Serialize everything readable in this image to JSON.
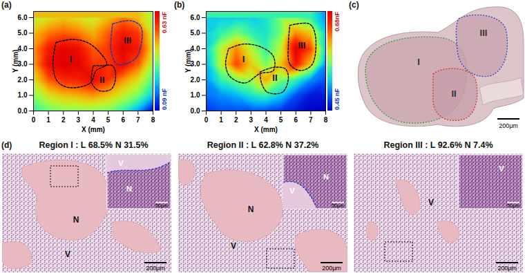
{
  "chart_data": [
    {
      "type": "heatmap",
      "title": "(a)",
      "xlabel": "X (mm)",
      "ylabel": "Y (mm)",
      "xlim": [
        0,
        8
      ],
      "ylim": [
        0,
        6.4
      ],
      "xticks": [
        0,
        1,
        2,
        3,
        4,
        5,
        6,
        7,
        8
      ],
      "yticks": [
        0,
        1,
        2,
        3,
        4,
        5,
        6
      ],
      "x": [
        0,
        1,
        2,
        3,
        4,
        5,
        6,
        7,
        8
      ],
      "y": [
        6,
        5,
        4,
        3,
        2,
        1,
        0
      ],
      "z": [
        [
          0.4,
          0.42,
          0.44,
          0.42,
          0.4,
          0.45,
          0.5,
          0.45,
          0.38
        ],
        [
          0.45,
          0.5,
          0.52,
          0.5,
          0.46,
          0.52,
          0.58,
          0.55,
          0.4
        ],
        [
          0.48,
          0.58,
          0.62,
          0.6,
          0.52,
          0.55,
          0.62,
          0.58,
          0.42
        ],
        [
          0.47,
          0.6,
          0.63,
          0.62,
          0.55,
          0.55,
          0.6,
          0.52,
          0.38
        ],
        [
          0.42,
          0.52,
          0.56,
          0.57,
          0.6,
          0.55,
          0.48,
          0.42,
          0.32
        ],
        [
          0.36,
          0.42,
          0.45,
          0.46,
          0.48,
          0.45,
          0.4,
          0.35,
          0.25
        ],
        [
          0.3,
          0.34,
          0.36,
          0.36,
          0.36,
          0.35,
          0.3,
          0.22,
          0.09
        ]
      ],
      "colorbar": {
        "range": [
          0.09,
          0.63
        ],
        "ticks": [
          {
            "value": 0.63,
            "label": "0.63 nF"
          },
          {
            "value": 0.09,
            "label": "0.09 nF"
          }
        ]
      },
      "regions": [
        {
          "label": "I",
          "color": "#000000",
          "label_position": [
            2.5,
            3.3
          ],
          "outline": [
            [
              1.5,
              4.4
            ],
            [
              2.6,
              4.6
            ],
            [
              3.6,
              4.4
            ],
            [
              4.4,
              3.8
            ],
            [
              4.9,
              3.0
            ],
            [
              4.2,
              2.6
            ],
            [
              3.8,
              1.8
            ],
            [
              2.4,
              1.5
            ],
            [
              1.6,
              1.9
            ],
            [
              1.3,
              3.0
            ]
          ]
        },
        {
          "label": "II",
          "color": "#000000",
          "label_position": [
            4.6,
            2.0
          ],
          "outline": [
            [
              4.0,
              2.9
            ],
            [
              4.6,
              2.9
            ],
            [
              5.3,
              2.9
            ],
            [
              5.5,
              2.2
            ],
            [
              5.2,
              1.4
            ],
            [
              4.4,
              1.3
            ],
            [
              3.9,
              1.8
            ]
          ]
        },
        {
          "label": "III",
          "color": "#2030c0",
          "label_position": [
            6.3,
            4.5
          ],
          "outline": [
            [
              5.3,
              5.6
            ],
            [
              6.5,
              5.8
            ],
            [
              7.2,
              5.4
            ],
            [
              7.0,
              3.6
            ],
            [
              6.4,
              3.1
            ],
            [
              5.6,
              3.0
            ],
            [
              5.2,
              3.8
            ],
            [
              5.2,
              4.8
            ]
          ]
        }
      ]
    },
    {
      "type": "heatmap",
      "title": "(b)",
      "xlabel": "X (mm)",
      "ylabel": "Y (mm)",
      "xlim": [
        0,
        8
      ],
      "ylim": [
        0,
        6.4
      ],
      "xticks": [
        0,
        1,
        2,
        3,
        4,
        5,
        6,
        7,
        8
      ],
      "yticks": [
        0,
        1,
        2,
        3,
        4,
        5,
        6
      ],
      "x": [
        0,
        1,
        2,
        3,
        4,
        5,
        6,
        7,
        8
      ],
      "y": [
        6,
        5,
        4,
        3,
        2,
        1,
        0
      ],
      "z": [
        [
          0.52,
          0.52,
          0.52,
          0.52,
          0.53,
          0.56,
          0.56,
          0.54,
          0.5
        ],
        [
          0.52,
          0.54,
          0.56,
          0.54,
          0.53,
          0.56,
          0.62,
          0.6,
          0.52
        ],
        [
          0.52,
          0.58,
          0.62,
          0.58,
          0.54,
          0.58,
          0.68,
          0.64,
          0.52
        ],
        [
          0.51,
          0.58,
          0.64,
          0.6,
          0.56,
          0.6,
          0.66,
          0.6,
          0.5
        ],
        [
          0.5,
          0.54,
          0.56,
          0.57,
          0.61,
          0.56,
          0.54,
          0.5,
          0.48
        ],
        [
          0.49,
          0.5,
          0.51,
          0.53,
          0.54,
          0.52,
          0.48,
          0.46,
          0.46
        ],
        [
          0.47,
          0.48,
          0.48,
          0.48,
          0.48,
          0.47,
          0.46,
          0.45,
          0.45
        ]
      ],
      "colorbar": {
        "range": [
          0.45,
          0.68
        ],
        "ticks": [
          {
            "value": 0.68,
            "label": "0.68nF"
          },
          {
            "value": 0.45,
            "label": "0.45 nF"
          }
        ]
      },
      "regions": [
        {
          "label": "I",
          "color": "#000000",
          "label_position": [
            2.5,
            3.3
          ],
          "outline": [
            [
              1.5,
              4.0
            ],
            [
              2.5,
              4.3
            ],
            [
              3.7,
              4.1
            ],
            [
              4.5,
              3.5
            ],
            [
              4.5,
              2.6
            ],
            [
              3.6,
              2.4
            ],
            [
              2.6,
              1.8
            ],
            [
              1.6,
              2.2
            ],
            [
              1.3,
              3.0
            ]
          ]
        },
        {
          "label": "II",
          "color": "#000000",
          "label_position": [
            4.6,
            2.1
          ],
          "outline": [
            [
              3.6,
              2.5
            ],
            [
              4.5,
              2.8
            ],
            [
              5.3,
              2.7
            ],
            [
              5.5,
              2.1
            ],
            [
              5.1,
              1.2
            ],
            [
              4.1,
              1.2
            ],
            [
              3.7,
              1.8
            ]
          ]
        },
        {
          "label": "III",
          "color": "#000000",
          "label_position": [
            6.4,
            4.2
          ],
          "outline": [
            [
              5.6,
              5.5
            ],
            [
              6.9,
              5.6
            ],
            [
              7.3,
              4.9
            ],
            [
              7.1,
              3.0
            ],
            [
              6.3,
              2.6
            ],
            [
              5.6,
              3.0
            ],
            [
              5.5,
              4.3
            ]
          ]
        }
      ]
    }
  ],
  "histology": {
    "title": "(c)",
    "scale_bar": "200μm",
    "regions": [
      {
        "label": "I",
        "color": "#3a9d3a"
      },
      {
        "label": "II",
        "color": "#e03030"
      },
      {
        "label": "III",
        "color": "#3040c0"
      }
    ]
  },
  "details": {
    "title": "(d)",
    "panels": [
      {
        "title": "Region I : L 68.5% N 31.5%",
        "labels": [
          "N",
          "V"
        ],
        "inset_labels": [
          "V",
          "N"
        ],
        "scale_bar": "200μm",
        "inset_scale_bar": "50μm"
      },
      {
        "title": "Region II : L 62.8% N 37.2%",
        "labels": [
          "N",
          "V"
        ],
        "inset_labels": [
          "V",
          "N"
        ],
        "scale_bar": "200μm",
        "inset_scale_bar": "50μm"
      },
      {
        "title": "Region III : L 92.6% N 7.4%",
        "labels": [
          "V"
        ],
        "inset_labels": [
          "V"
        ],
        "scale_bar": "200μm",
        "inset_scale_bar": "50μm"
      }
    ]
  }
}
